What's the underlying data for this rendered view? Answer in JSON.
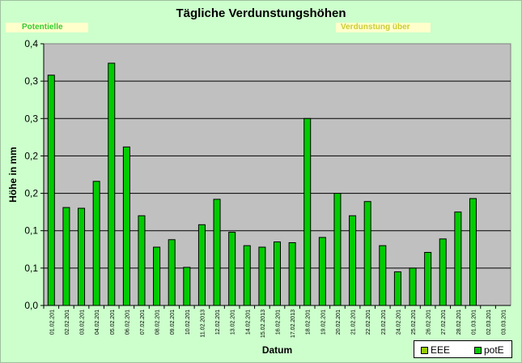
{
  "chart_data": {
    "type": "bar",
    "title": "Tägliche Verdunstungshöhen",
    "xlabel": "Datum",
    "ylabel": "Höhe in mm",
    "y_ticks": [
      "0,0",
      "0,1",
      "0,1",
      "0,2",
      "0,2",
      "0,3",
      "0,3",
      "0,4"
    ],
    "ylim": [
      0,
      0.35
    ],
    "grid": true,
    "legend_placement": "bottom-right",
    "categories": [
      "01.02.201",
      "02.02.201",
      "03.02.201",
      "04.02.201",
      "05.02.201",
      "06.02.201",
      "07.02.201",
      "08.02.201",
      "09.02.201",
      "10.02.201",
      "11.02.2013",
      "12.02.201",
      "13.02.201",
      "14.02.201",
      "15.02.2013",
      "16.02.201",
      "17.02.2013",
      "18.02.201",
      "19.02.201",
      "20.02.201",
      "21.02.201",
      "22.02.201",
      "23.02.201",
      "24.02.201",
      "25.02.201",
      "26.02.201",
      "27.02.201",
      "28.02.201",
      "01.03.201",
      "02.03.201",
      "03.03.201"
    ],
    "series": [
      {
        "name": "EEE",
        "color": "#99cc00",
        "values": [
          null,
          null,
          null,
          null,
          null,
          null,
          null,
          null,
          null,
          null,
          null,
          null,
          null,
          null,
          null,
          null,
          null,
          null,
          null,
          null,
          null,
          null,
          null,
          null,
          null,
          null,
          null,
          null,
          null,
          null,
          null
        ]
      },
      {
        "name": "potE",
        "color": "#00cc00",
        "values": [
          0.308,
          0.131,
          0.13,
          0.166,
          0.324,
          0.212,
          0.12,
          0.078,
          0.088,
          0.051,
          0.108,
          0.142,
          0.098,
          0.08,
          0.078,
          0.085,
          0.084,
          0.25,
          0.091,
          0.15,
          0.12,
          0.139,
          0.08,
          0.045,
          0.05,
          0.071,
          0.089,
          0.125,
          0.143,
          null,
          null
        ]
      }
    ]
  },
  "notes": {
    "left": "Potentielle",
    "right": "Verdunstung über"
  },
  "colors": {
    "background": "#ccffcc",
    "plot_area": "#c0c0c0",
    "bar": "#00cc00",
    "eee": "#99cc00"
  }
}
